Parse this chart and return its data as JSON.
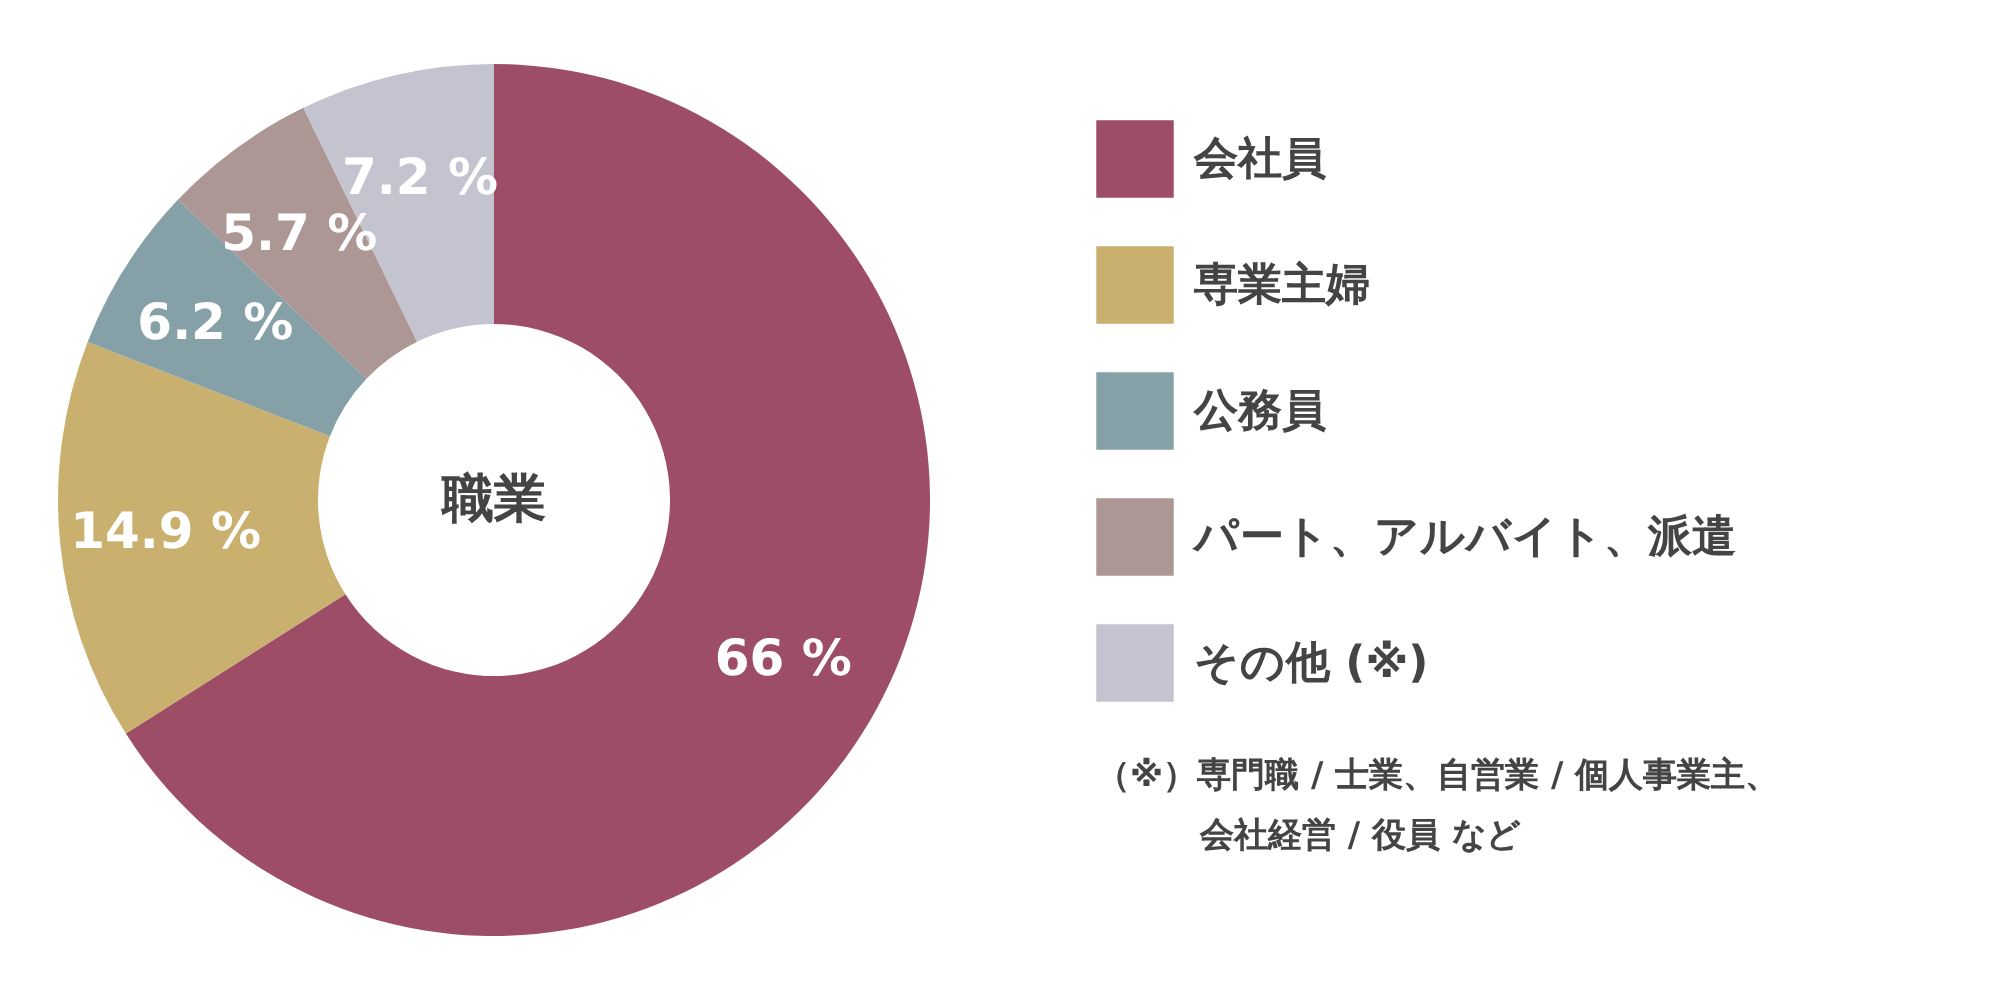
{
  "chart_data": {
    "type": "donut",
    "title": "職業",
    "categories": [
      "会社員",
      "専業主婦",
      "公務員",
      "パート、アルバイト、派遣",
      "その他 (※)"
    ],
    "values": [
      66,
      14.9,
      6.2,
      5.7,
      7.2
    ],
    "value_labels": [
      "66 %",
      "14.9 %",
      "6.2 %",
      "5.7 %",
      "7.2 %"
    ],
    "colors": [
      "#9e4d66",
      "#c9b06e",
      "#86a0a8",
      "#ad9794",
      "#c3c4d0"
    ],
    "legend": "right",
    "annotations": [
      "（※）専門職 / 士業、自営業 / 個人事業主、",
      "会社経営 / 役員 など"
    ]
  }
}
